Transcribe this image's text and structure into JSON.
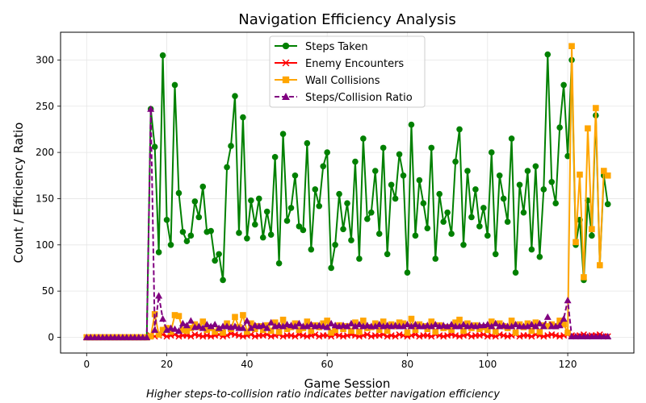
{
  "chart_data": {
    "type": "line",
    "title": "Navigation Efficiency Analysis",
    "xlabel": "Game Session",
    "ylabel": "Count / Efficiency Ratio",
    "xlim": [
      -6.5,
      136.5
    ],
    "ylim": [
      -17,
      330
    ],
    "xticks": [
      0,
      20,
      40,
      60,
      80,
      100,
      120
    ],
    "yticks": [
      0,
      50,
      100,
      150,
      200,
      250,
      300
    ],
    "grid": true,
    "legend_position": "upper-center",
    "caption": "Higher steps-to-collision ratio indicates better navigation efficiency",
    "x_start": 0,
    "series": [
      {
        "name": "Steps Taken",
        "color": "#008000",
        "marker": "circle",
        "dash": "solid",
        "values": [
          0,
          0,
          0,
          0,
          0,
          0,
          0,
          0,
          0,
          0,
          0,
          0,
          0,
          0,
          0,
          0,
          247,
          206,
          92,
          305,
          127,
          100,
          273,
          156,
          114,
          104,
          110,
          147,
          130,
          163,
          114,
          115,
          83,
          90,
          62,
          184,
          207,
          261,
          113,
          238,
          107,
          148,
          122,
          150,
          108,
          136,
          111,
          195,
          80,
          220,
          126,
          140,
          175,
          120,
          116,
          210,
          95,
          160,
          142,
          185,
          200,
          75,
          100,
          155,
          117,
          145,
          105,
          190,
          85,
          215,
          128,
          135,
          180,
          112,
          205,
          90,
          165,
          150,
          198,
          175,
          70,
          230,
          110,
          170,
          145,
          118,
          205,
          85,
          155,
          125,
          135,
          112,
          190,
          225,
          100,
          180,
          130,
          160,
          120,
          140,
          110,
          200,
          90,
          175,
          150,
          125,
          215,
          70,
          165,
          135,
          180,
          95,
          185,
          87,
          160,
          306,
          168,
          145,
          227,
          273,
          196,
          300,
          100,
          127,
          62,
          148,
          110,
          240,
          78,
          175,
          144
        ]
      },
      {
        "name": "Enemy Encounters",
        "color": "#ff0000",
        "marker": "x",
        "dash": "solid",
        "values": [
          0,
          0,
          0,
          0,
          0,
          0,
          0,
          0,
          0,
          0,
          0,
          0,
          0,
          0,
          0,
          0,
          2,
          1,
          2,
          3,
          1,
          2,
          3,
          1,
          2,
          2,
          1,
          3,
          2,
          1,
          2,
          1,
          2,
          3,
          1,
          2,
          4,
          3,
          2,
          1,
          2,
          3,
          1,
          2,
          2,
          3,
          1,
          2,
          3,
          1,
          2,
          2,
          1,
          3,
          2,
          1,
          2,
          3,
          1,
          2,
          2,
          1,
          3,
          2,
          1,
          2,
          3,
          2,
          1,
          2,
          3,
          1,
          2,
          2,
          3,
          1,
          2,
          1,
          3,
          2,
          1,
          2,
          3,
          1,
          2,
          2,
          1,
          3,
          2,
          1,
          2,
          3,
          2,
          1,
          2,
          3,
          1,
          2,
          2,
          3,
          1,
          2,
          1,
          3,
          2,
          1,
          2,
          3,
          1,
          2,
          2,
          1,
          3,
          2,
          1,
          2,
          3,
          2,
          1,
          2,
          3,
          2,
          1,
          2,
          3,
          1,
          2,
          2,
          3,
          1,
          1
        ]
      },
      {
        "name": "Wall Collisions",
        "color": "#ffa500",
        "marker": "square",
        "dash": "solid",
        "values": [
          0,
          0,
          0,
          0,
          0,
          0,
          0,
          0,
          0,
          0,
          0,
          0,
          0,
          0,
          0,
          0,
          1,
          25,
          3,
          8,
          10,
          6,
          24,
          23,
          8,
          7,
          10,
          14,
          11,
          17,
          8,
          10,
          6,
          9,
          5,
          15,
          9,
          22,
          11,
          24,
          6,
          15,
          9,
          12,
          8,
          13,
          7,
          16,
          6,
          19,
          9,
          11,
          15,
          8,
          10,
          17,
          7,
          13,
          11,
          15,
          18,
          5,
          8,
          13,
          9,
          12,
          7,
          16,
          6,
          18,
          10,
          11,
          15,
          8,
          17,
          7,
          14,
          12,
          16,
          15,
          5,
          20,
          8,
          14,
          12,
          9,
          17,
          6,
          13,
          10,
          11,
          8,
          16,
          19,
          7,
          15,
          10,
          13,
          9,
          11,
          8,
          17,
          6,
          15,
          12,
          10,
          18,
          5,
          14,
          11,
          15,
          7,
          16,
          6,
          13,
          12,
          14,
          12,
          18,
          14,
          5,
          315,
          103,
          176,
          65,
          226,
          117,
          248,
          78,
          180,
          175
        ]
      },
      {
        "name": "Steps/Collision Ratio",
        "color": "#800080",
        "marker": "triangle",
        "dash": "dashed",
        "values": [
          0,
          0,
          0,
          0,
          0,
          0,
          0,
          0,
          0,
          0,
          0,
          0,
          0,
          0,
          0,
          0,
          247,
          8,
          45,
          20,
          8,
          10,
          9,
          7,
          15,
          13,
          18,
          11,
          12,
          10,
          14,
          12,
          14,
          10,
          12,
          12,
          11,
          12,
          10,
          10,
          18,
          10,
          13,
          12,
          13,
          10,
          16,
          12,
          13,
          12,
          14,
          13,
          12,
          15,
          12,
          12,
          14,
          12,
          13,
          12,
          11,
          15,
          13,
          12,
          13,
          12,
          15,
          12,
          14,
          12,
          13,
          12,
          12,
          14,
          12,
          13,
          12,
          13,
          12,
          12,
          14,
          12,
          14,
          12,
          12,
          13,
          12,
          14,
          12,
          13,
          12,
          14,
          12,
          12,
          14,
          12,
          13,
          12,
          13,
          13,
          14,
          12,
          15,
          12,
          13,
          12,
          12,
          14,
          12,
          12,
          12,
          14,
          12,
          15,
          12,
          22,
          12,
          12,
          13,
          20,
          40,
          1,
          1,
          1,
          1,
          1,
          1,
          1,
          1,
          1,
          1
        ]
      }
    ]
  }
}
